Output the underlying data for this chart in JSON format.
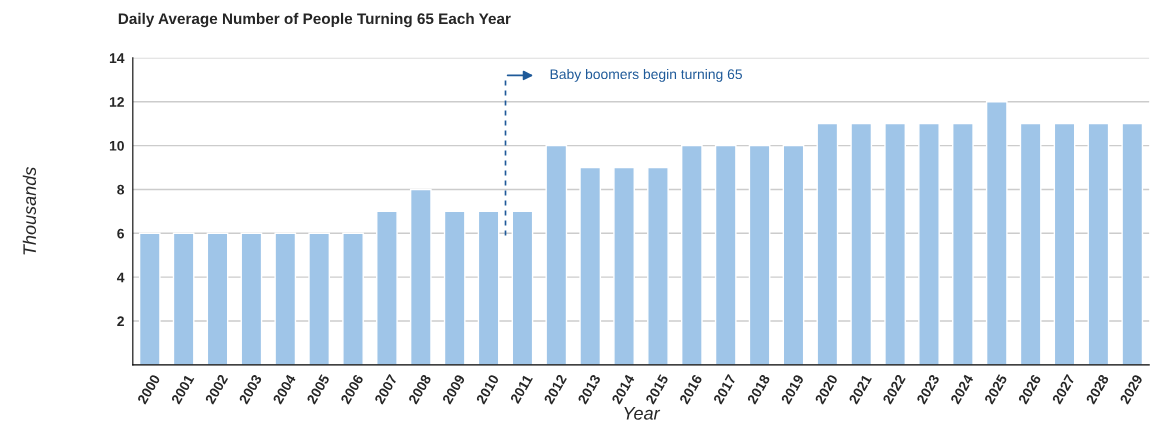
{
  "chart_data": {
    "type": "bar",
    "title": "Daily Average Number of People Turning 65 Each Year",
    "xlabel": "Year",
    "ylabel": "Thousands",
    "categories": [
      "2000",
      "2001",
      "2002",
      "2003",
      "2004",
      "2005",
      "2006",
      "2007",
      "2008",
      "2009",
      "2010",
      "2011",
      "2012",
      "2013",
      "2014",
      "2015",
      "2016",
      "2017",
      "2018",
      "2019",
      "2020",
      "2021",
      "2022",
      "2023",
      "2024",
      "2025",
      "2026",
      "2027",
      "2028",
      "2029"
    ],
    "values": [
      6,
      6,
      6,
      6,
      6,
      6,
      6,
      7,
      8,
      7,
      7,
      7,
      10,
      9,
      9,
      9,
      10,
      10,
      10,
      10,
      11,
      11,
      11,
      11,
      11,
      12,
      11,
      11,
      11,
      11
    ],
    "color": "#9fc5e8",
    "ylim": [
      0,
      14
    ],
    "yticks": [
      2,
      4,
      6,
      8,
      10,
      12,
      14
    ],
    "grid": "y",
    "annotations": [
      "Baby boomers begin turning 65"
    ]
  }
}
